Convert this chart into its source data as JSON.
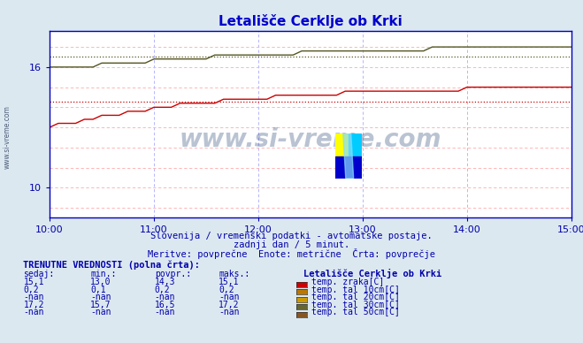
{
  "title": "Letališče Cerklje ob Krki",
  "bg_color": "#dce8f0",
  "plot_bg_color": "#ffffff",
  "grid_color_h": "#ffaaaa",
  "grid_color_v": "#aaaaff",
  "x_ticks": [
    0,
    60,
    120,
    180,
    240,
    300
  ],
  "x_tick_labels": [
    "10:00",
    "11:00",
    "12:00",
    "13:00",
    "14:00",
    "15:00"
  ],
  "y_min": 8.5,
  "y_max": 17.8,
  "y_ticks": [
    10,
    16
  ],
  "subtitle1": "Slovenija / vremenski podatki - avtomatske postaje.",
  "subtitle2": "zadnji dan / 5 minut.",
  "subtitle3": "Meritve: povprečne  Enote: metrične  Črta: povprečje",
  "table_header": "TRENUTNE VREDNOSTI (polna črta):",
  "col_headers": [
    "sedaj:",
    "min.:",
    "povpr.:",
    "maks.:"
  ],
  "rows": [
    {
      "sedaj": "15,1",
      "min": "13,0",
      "povpr": "14,3",
      "maks": "15,1",
      "color": "#cc0000",
      "label": "temp. zraka[C]"
    },
    {
      "sedaj": "0,2",
      "min": "0,1",
      "povpr": "0,2",
      "maks": "0,2",
      "color": "#bb7700",
      "label": "temp. tal 10cm[C]"
    },
    {
      "sedaj": "-nan",
      "min": "-nan",
      "povpr": "-nan",
      "maks": "-nan",
      "color": "#cc9900",
      "label": "temp. tal 20cm[C]"
    },
    {
      "sedaj": "17,2",
      "min": "15,7",
      "povpr": "16,5",
      "maks": "17,2",
      "color": "#666633",
      "label": "temp. tal 30cm[C]"
    },
    {
      "sedaj": "-nan",
      "min": "-nan",
      "povpr": "-nan",
      "maks": "-nan",
      "color": "#885522",
      "label": "temp. tal 50cm[C]"
    }
  ],
  "line_red_color": "#cc0000",
  "line_olive_color": "#555522",
  "line_red_avg": 14.3,
  "line_olive_avg": 16.5,
  "watermark": "www.si-vreme.com",
  "watermark_color": "#1a3a6b",
  "left_label": "www.si-vreme.com",
  "left_label_color": "#334466"
}
